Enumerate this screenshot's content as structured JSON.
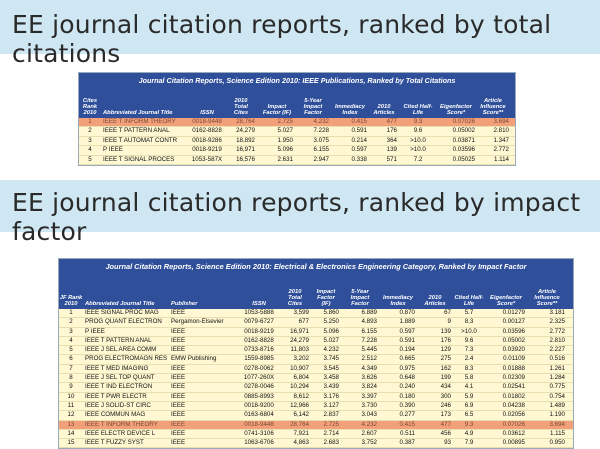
{
  "heading1": "EE journal citation reports, ranked by total citations",
  "heading2": "EE journal citation reports, ranked by impact factor",
  "table1": {
    "caption": "Journal Citation Reports, Science Edition 2010: IEEE Publications, Ranked by Total Citations",
    "headers": [
      "Cites Rank 2010",
      "Abbreviated Journal Title",
      "ISSN",
      "2010 Total Cites",
      "Impact Factor (IF)",
      "5-Year Impact Factor",
      "Immediacy Index",
      "2010 Articles",
      "Cited Half-Life",
      "Eigenfactor Score*",
      "Article Influence Score**"
    ],
    "rows": [
      [
        "1",
        "IEEE T INFORM THEORY",
        "0018-9448",
        "28,764",
        "2.725",
        "4.232",
        "0.415",
        "477",
        "9.3",
        "0.07026",
        "3.694"
      ],
      [
        "2",
        "IEEE T PATTERN ANAL",
        "0162-8828",
        "24,279",
        "5.027",
        "7.228",
        "0.591",
        "176",
        "9.6",
        "0.05002",
        "2.810"
      ],
      [
        "3",
        "IEEE T AUTOMAT CONTR",
        "0018-9286",
        "18,892",
        "1.950",
        "3.075",
        "0.214",
        "364",
        ">10.0",
        "0.03871",
        "1.347"
      ],
      [
        "4",
        "P IEEE",
        "0018-9219",
        "16,971",
        "5.096",
        "6.155",
        "0.597",
        "139",
        ">10.0",
        "0.03596",
        "2.772"
      ],
      [
        "5",
        "IEEE T SIGNAL PROCES",
        "1053-587X",
        "16,576",
        "2.631",
        "2.947",
        "0.338",
        "571",
        "7.2",
        "0.05025",
        "1.114"
      ]
    ]
  },
  "table2": {
    "caption": "Journal Citation Reports, Science Edition 2010: Electrical & Electronics Engineering Category, Ranked by Impact Factor",
    "headers": [
      "JF Rank 2010",
      "Abbreviated Journal Title",
      "Publisher",
      "ISSN",
      "2010 Total Cites",
      "Impact Factor (IF)",
      "5-Year Impact Factor",
      "Immediacy Index",
      "2010 Articles",
      "Cited Half-Life",
      "Eigenfactor Score*",
      "Article Influence Score**"
    ],
    "rows": [
      [
        "1",
        "IEEE SIGNAL PROC MAG",
        "IEEE",
        "1053-5888",
        "3,599",
        "5.860",
        "6.889",
        "0.870",
        "67",
        "5.7",
        "0.01279",
        "3.181"
      ],
      [
        "2",
        "PROG QUANT ELECTRON",
        "Pergamon-Elsevier",
        "0079-6727",
        "677",
        "5.250",
        "4.893",
        "1.889",
        "9",
        "8.3",
        "0.00127",
        "2.325"
      ],
      [
        "3",
        "P IEEE",
        "IEEE",
        "0018-9219",
        "16,971",
        "5.096",
        "6.155",
        "0.597",
        "139",
        ">10.0",
        "0.03596",
        "2.772"
      ],
      [
        "4",
        "IEEE T PATTERN ANAL",
        "IEEE",
        "0162-8828",
        "24,279",
        "5.027",
        "7.228",
        "0.591",
        "176",
        "9.6",
        "0.05002",
        "2.810"
      ],
      [
        "5",
        "IEEE J SEL AREA COMM",
        "IEEE",
        "0733-8716",
        "11,803",
        "4.232",
        "5.445",
        "0.194",
        "129",
        "7.3",
        "0.03920",
        "2.227"
      ],
      [
        "6",
        "PROG ELECTROMAGN RES",
        "EMW Publishing",
        "1559-8985",
        "3,202",
        "3.745",
        "2.512",
        "0.665",
        "275",
        "2.4",
        "0.01109",
        "0.516"
      ],
      [
        "7",
        "IEEE T MED IMAGING",
        "IEEE",
        "0278-0062",
        "10,907",
        "3.545",
        "4.349",
        "0.975",
        "162",
        "8.3",
        "0.01888",
        "1.261"
      ],
      [
        "8",
        "IEEE J SEL TOP QUANT",
        "IEEE",
        "1077-260X",
        "6,804",
        "3.458",
        "3.626",
        "0.648",
        "199",
        "5.8",
        "0.02309",
        "1.284"
      ],
      [
        "9",
        "IEEE T IND ELECTRON",
        "IEEE",
        "0278-0046",
        "10,294",
        "3.439",
        "3.824",
        "0.240",
        "434",
        "4.1",
        "0.02541",
        "0.775"
      ],
      [
        "10",
        "IEEE T PWR ELECTR",
        "IEEE",
        "0885-8993",
        "8,612",
        "3.176",
        "3.397",
        "0.180",
        "300",
        "5.9",
        "0.01802",
        "0.754"
      ],
      [
        "11",
        "IEEE J SOLID-ST CIRC",
        "IEEE",
        "0018-9200",
        "12,966",
        "3.127",
        "3.730",
        "0.390",
        "246",
        "6.9",
        "0.04238",
        "1.489"
      ],
      [
        "12",
        "IEEE COMMUN MAG",
        "IEEE",
        "0163-6804",
        "6,142",
        "2.837",
        "3.043",
        "0.277",
        "173",
        "6.5",
        "0.02056",
        "1.190"
      ],
      [
        "13",
        "IEEE T INFORM THEORY",
        "IEEE",
        "0018-9448",
        "28,764",
        "2.725",
        "4.232",
        "0.415",
        "477",
        "9.3",
        "0.07026",
        "3.694"
      ],
      [
        "14",
        "IEEE ELECTR DEVICE L",
        "IEEE",
        "0741-3106",
        "7,921",
        "2.714",
        "2.607",
        "0.511",
        "456",
        "4.9",
        "0.03612",
        "1.115"
      ],
      [
        "15",
        "IEEE T FUZZY SYST",
        "IEEE",
        "1063-6706",
        "4,863",
        "2.683",
        "3.752",
        "0.387",
        "93",
        "7.9",
        "0.00895",
        "0.950"
      ]
    ]
  }
}
